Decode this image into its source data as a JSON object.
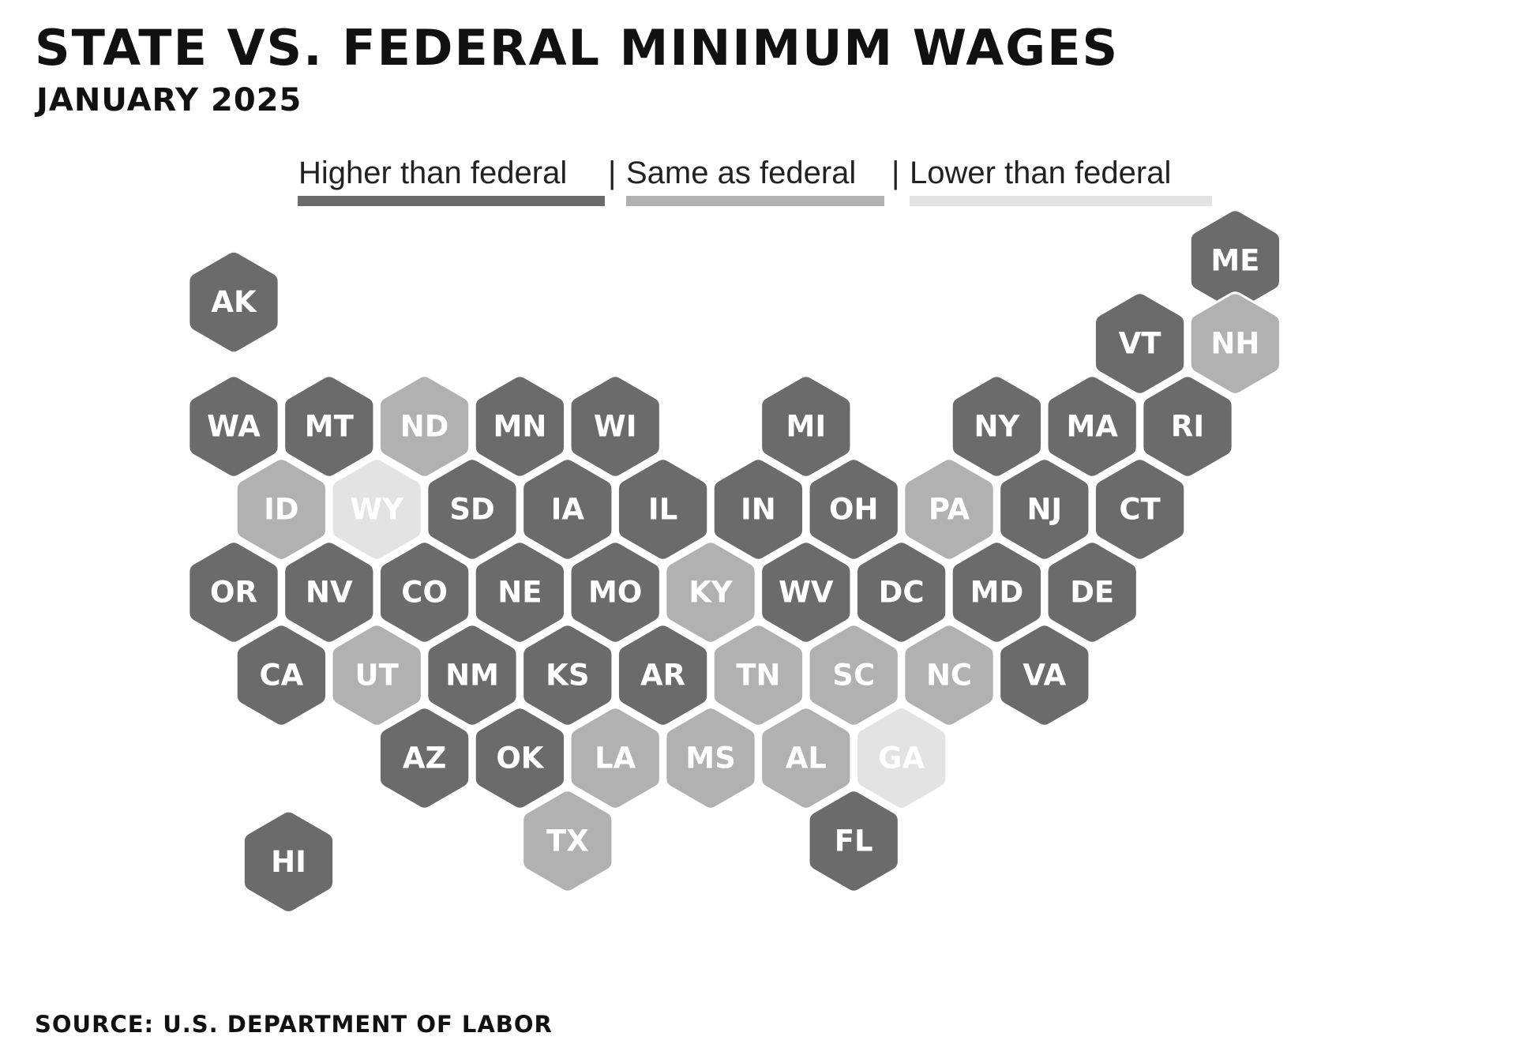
{
  "title": "STATE VS. FEDERAL MINIMUM WAGES",
  "subtitle": "JANUARY 2025",
  "source": "SOURCE: U.S. DEPARTMENT OF LABOR",
  "legend": [
    {
      "key": "higher",
      "label": "Higher than federal",
      "color": "#6b6b6b"
    },
    {
      "key": "same",
      "label": "Same as federal",
      "color": "#b1b1b1"
    },
    {
      "key": "lower",
      "label": "Lower than federal",
      "color": "#e3e3e3"
    }
  ],
  "legend_separator": "|",
  "colors": {
    "higher": "#6b6b6b",
    "same": "#b1b1b1",
    "lower": "#e3e3e3",
    "outline": "#ffffff",
    "label": "#ffffff"
  },
  "states": [
    {
      "code": "ME",
      "status": "higher",
      "row": 0,
      "col": 21
    },
    {
      "code": "AK",
      "status": "higher",
      "row": 0.5,
      "col": 0
    },
    {
      "code": "VT",
      "status": "higher",
      "row": 1,
      "col": 19
    },
    {
      "code": "NH",
      "status": "same",
      "row": 1,
      "col": 21
    },
    {
      "code": "WA",
      "status": "higher",
      "row": 2,
      "col": 0
    },
    {
      "code": "MT",
      "status": "higher",
      "row": 2,
      "col": 2
    },
    {
      "code": "ND",
      "status": "same",
      "row": 2,
      "col": 4
    },
    {
      "code": "MN",
      "status": "higher",
      "row": 2,
      "col": 6
    },
    {
      "code": "WI",
      "status": "higher",
      "row": 2,
      "col": 8
    },
    {
      "code": "MI",
      "status": "higher",
      "row": 2,
      "col": 12
    },
    {
      "code": "NY",
      "status": "higher",
      "row": 2,
      "col": 16
    },
    {
      "code": "MA",
      "status": "higher",
      "row": 2,
      "col": 18
    },
    {
      "code": "RI",
      "status": "higher",
      "row": 2,
      "col": 20
    },
    {
      "code": "ID",
      "status": "same",
      "row": 3,
      "col": 1
    },
    {
      "code": "WY",
      "status": "lower",
      "row": 3,
      "col": 3
    },
    {
      "code": "SD",
      "status": "higher",
      "row": 3,
      "col": 5
    },
    {
      "code": "IA",
      "status": "higher",
      "row": 3,
      "col": 7
    },
    {
      "code": "IL",
      "status": "higher",
      "row": 3,
      "col": 9
    },
    {
      "code": "IN",
      "status": "higher",
      "row": 3,
      "col": 11
    },
    {
      "code": "OH",
      "status": "higher",
      "row": 3,
      "col": 13
    },
    {
      "code": "PA",
      "status": "same",
      "row": 3,
      "col": 15
    },
    {
      "code": "NJ",
      "status": "higher",
      "row": 3,
      "col": 17
    },
    {
      "code": "CT",
      "status": "higher",
      "row": 3,
      "col": 19
    },
    {
      "code": "OR",
      "status": "higher",
      "row": 4,
      "col": 0
    },
    {
      "code": "NV",
      "status": "higher",
      "row": 4,
      "col": 2
    },
    {
      "code": "CO",
      "status": "higher",
      "row": 4,
      "col": 4
    },
    {
      "code": "NE",
      "status": "higher",
      "row": 4,
      "col": 6
    },
    {
      "code": "MO",
      "status": "higher",
      "row": 4,
      "col": 8
    },
    {
      "code": "KY",
      "status": "same",
      "row": 4,
      "col": 10
    },
    {
      "code": "WV",
      "status": "higher",
      "row": 4,
      "col": 12
    },
    {
      "code": "DC",
      "status": "higher",
      "row": 4,
      "col": 14
    },
    {
      "code": "MD",
      "status": "higher",
      "row": 4,
      "col": 16
    },
    {
      "code": "DE",
      "status": "higher",
      "row": 4,
      "col": 18
    },
    {
      "code": "CA",
      "status": "higher",
      "row": 5,
      "col": 1
    },
    {
      "code": "UT",
      "status": "same",
      "row": 5,
      "col": 3
    },
    {
      "code": "NM",
      "status": "higher",
      "row": 5,
      "col": 5
    },
    {
      "code": "KS",
      "status": "higher",
      "row": 5,
      "col": 7
    },
    {
      "code": "AR",
      "status": "higher",
      "row": 5,
      "col": 9
    },
    {
      "code": "TN",
      "status": "same",
      "row": 5,
      "col": 11
    },
    {
      "code": "SC",
      "status": "same",
      "row": 5,
      "col": 13
    },
    {
      "code": "NC",
      "status": "same",
      "row": 5,
      "col": 15
    },
    {
      "code": "VA",
      "status": "higher",
      "row": 5,
      "col": 17
    },
    {
      "code": "AZ",
      "status": "higher",
      "row": 6,
      "col": 4
    },
    {
      "code": "OK",
      "status": "higher",
      "row": 6,
      "col": 6
    },
    {
      "code": "LA",
      "status": "same",
      "row": 6,
      "col": 8
    },
    {
      "code": "MS",
      "status": "same",
      "row": 6,
      "col": 10
    },
    {
      "code": "AL",
      "status": "same",
      "row": 6,
      "col": 12
    },
    {
      "code": "GA",
      "status": "lower",
      "row": 6,
      "col": 14
    },
    {
      "code": "TX",
      "status": "same",
      "row": 7,
      "col": 7
    },
    {
      "code": "FL",
      "status": "higher",
      "row": 7,
      "col": 13
    },
    {
      "code": "HI",
      "status": "higher",
      "row": 7.25,
      "col": 1.15
    }
  ]
}
